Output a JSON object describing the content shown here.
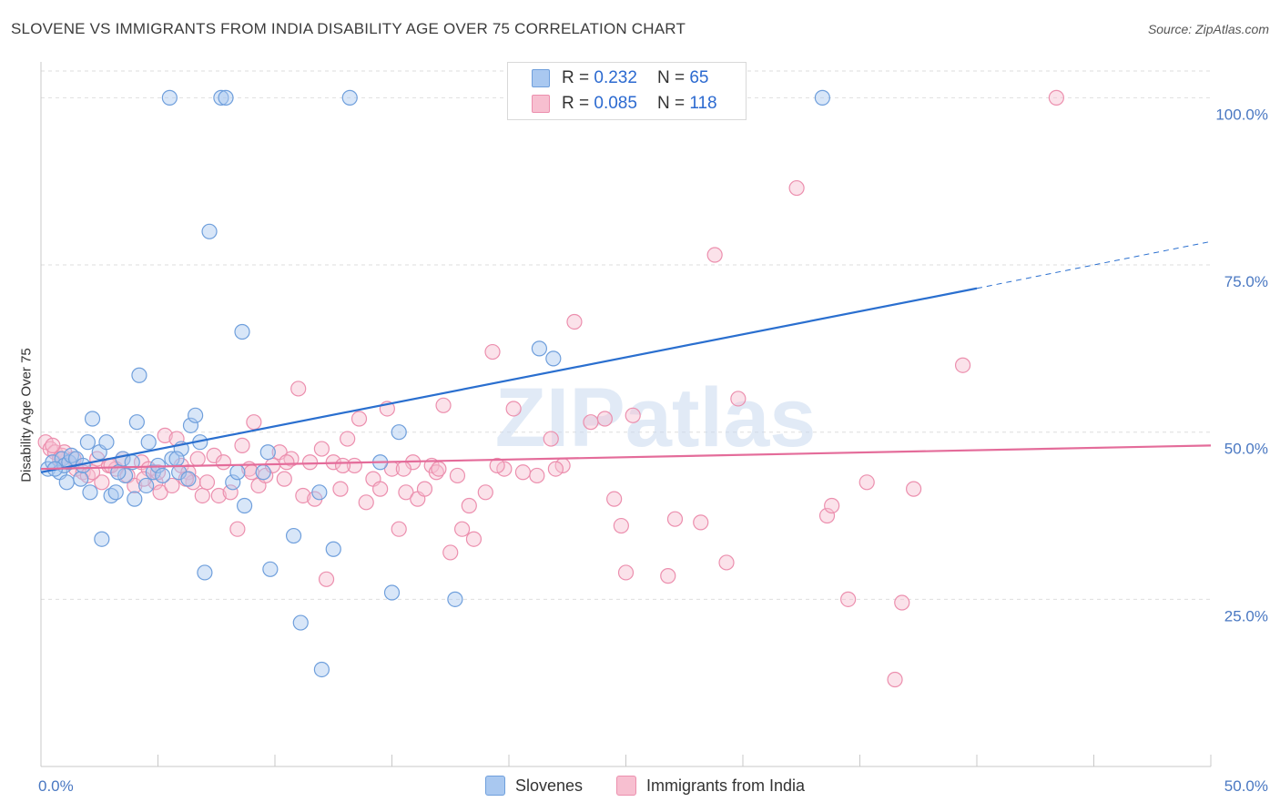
{
  "title": "SLOVENE VS IMMIGRANTS FROM INDIA DISABILITY AGE OVER 75 CORRELATION CHART",
  "source": "Source: ZipAtlas.com",
  "watermark": "ZIPatlas",
  "legend": {
    "rows": [
      {
        "r_label": "R =",
        "r_value": "0.232",
        "n_label": "N =",
        "n_value": "65"
      },
      {
        "r_label": "R =",
        "r_value": "0.085",
        "n_label": "N =",
        "n_value": "118"
      }
    ]
  },
  "bottom_legend": [
    "Slovenes",
    "Immigrants from India"
  ],
  "colors": {
    "slovenes_fill": "#a9c8f0",
    "slovenes_stroke": "#6f9fdc",
    "slovenes_line": "#2a6fcf",
    "india_fill": "#f7bfd0",
    "india_stroke": "#ec8fae",
    "india_line": "#e46c9a",
    "tick_label": "#4a78c2",
    "grid": "#dedede"
  },
  "chart_data": {
    "type": "scatter",
    "title": "SLOVENE VS IMMIGRANTS FROM INDIA DISABILITY AGE OVER 75 CORRELATION CHART",
    "xlabel": "",
    "ylabel": "Disability Age Over 75",
    "xlim": [
      0,
      50
    ],
    "ylim": [
      0,
      104
    ],
    "x_tick_labels": [
      "0.0%",
      "50.0%"
    ],
    "y_ticks": [
      25,
      50,
      75,
      100
    ],
    "y_tick_labels": [
      "25.0%",
      "50.0%",
      "75.0%",
      "100.0%"
    ],
    "grid": "horizontal dashed",
    "series": [
      {
        "name": "Slovenes",
        "r": 0.232,
        "n": 65,
        "trend": {
          "x0": 0,
          "y0": 44.0,
          "x1": 40,
          "y1": 71.5,
          "dashed_to_x": 50,
          "dashed_to_y": 78.5
        },
        "points": [
          [
            0.3,
            44.5
          ],
          [
            0.5,
            45.5
          ],
          [
            0.8,
            44.0
          ],
          [
            0.9,
            46.0
          ],
          [
            1.0,
            45.0
          ],
          [
            1.2,
            45.5
          ],
          [
            1.3,
            46.5
          ],
          [
            1.5,
            46.0
          ],
          [
            1.1,
            42.5
          ],
          [
            1.7,
            43.0
          ],
          [
            2.0,
            48.5
          ],
          [
            2.1,
            41.0
          ],
          [
            2.2,
            52.0
          ],
          [
            2.5,
            47.0
          ],
          [
            2.8,
            48.5
          ],
          [
            3.0,
            40.5
          ],
          [
            3.2,
            41.0
          ],
          [
            3.5,
            46.0
          ],
          [
            3.6,
            43.5
          ],
          [
            3.9,
            45.5
          ],
          [
            4.0,
            40.0
          ],
          [
            4.1,
            51.5
          ],
          [
            4.2,
            58.5
          ],
          [
            4.5,
            42.0
          ],
          [
            4.6,
            48.5
          ],
          [
            4.8,
            44.0
          ],
          [
            5.0,
            45.0
          ],
          [
            5.2,
            43.5
          ],
          [
            5.5,
            100.0
          ],
          [
            5.6,
            46.0
          ],
          [
            5.9,
            44.0
          ],
          [
            6.0,
            47.5
          ],
          [
            6.3,
            43.0
          ],
          [
            6.4,
            51.0
          ],
          [
            6.6,
            52.5
          ],
          [
            6.8,
            48.5
          ],
          [
            7.0,
            29.0
          ],
          [
            7.2,
            80.0
          ],
          [
            7.7,
            100.0
          ],
          [
            7.9,
            100.0
          ],
          [
            8.2,
            42.5
          ],
          [
            8.4,
            44.0
          ],
          [
            8.6,
            65.0
          ],
          [
            8.7,
            39.0
          ],
          [
            9.5,
            44.0
          ],
          [
            9.7,
            47.0
          ],
          [
            9.8,
            29.5
          ],
          [
            10.8,
            34.5
          ],
          [
            11.1,
            21.5
          ],
          [
            11.9,
            41.0
          ],
          [
            12.0,
            14.5
          ],
          [
            12.5,
            32.5
          ],
          [
            13.2,
            100.0
          ],
          [
            14.5,
            45.5
          ],
          [
            15.0,
            26.0
          ],
          [
            15.3,
            50.0
          ],
          [
            17.7,
            25.0
          ],
          [
            21.3,
            62.5
          ],
          [
            21.9,
            61.0
          ],
          [
            33.4,
            100.0
          ],
          [
            2.6,
            34.0
          ],
          [
            1.8,
            45.0
          ],
          [
            3.3,
            44.0
          ],
          [
            5.8,
            46.0
          ],
          [
            0.6,
            44.5
          ]
        ]
      },
      {
        "name": "Immigrants from India",
        "r": 0.085,
        "n": 118,
        "trend": {
          "x0": 0,
          "y0": 44.5,
          "x1": 50,
          "y1": 48.0
        },
        "points": [
          [
            0.2,
            48.5
          ],
          [
            0.4,
            47.5
          ],
          [
            0.6,
            47.0
          ],
          [
            0.9,
            46.5
          ],
          [
            1.2,
            45.5
          ],
          [
            1.5,
            44.5
          ],
          [
            1.8,
            44.0
          ],
          [
            2.0,
            43.5
          ],
          [
            2.4,
            46.0
          ],
          [
            2.6,
            42.5
          ],
          [
            2.9,
            45.0
          ],
          [
            3.2,
            44.5
          ],
          [
            3.5,
            46.0
          ],
          [
            3.7,
            43.5
          ],
          [
            4.0,
            42.0
          ],
          [
            4.3,
            45.5
          ],
          [
            4.6,
            44.5
          ],
          [
            4.9,
            42.5
          ],
          [
            5.1,
            41.0
          ],
          [
            5.3,
            49.5
          ],
          [
            5.6,
            42.0
          ],
          [
            5.8,
            49.0
          ],
          [
            6.0,
            45.0
          ],
          [
            6.3,
            44.0
          ],
          [
            6.5,
            42.5
          ],
          [
            6.7,
            46.0
          ],
          [
            6.9,
            40.5
          ],
          [
            7.1,
            42.5
          ],
          [
            7.4,
            46.5
          ],
          [
            7.6,
            40.5
          ],
          [
            7.8,
            45.5
          ],
          [
            8.1,
            41.0
          ],
          [
            8.4,
            35.5
          ],
          [
            8.6,
            48.0
          ],
          [
            8.9,
            44.5
          ],
          [
            9.1,
            51.5
          ],
          [
            9.3,
            42.0
          ],
          [
            9.6,
            43.5
          ],
          [
            9.9,
            45.0
          ],
          [
            10.2,
            47.0
          ],
          [
            10.4,
            43.0
          ],
          [
            10.7,
            46.0
          ],
          [
            11.0,
            56.5
          ],
          [
            11.2,
            40.5
          ],
          [
            11.5,
            45.5
          ],
          [
            11.7,
            40.0
          ],
          [
            12.0,
            47.5
          ],
          [
            12.2,
            28.0
          ],
          [
            12.5,
            45.5
          ],
          [
            12.8,
            41.5
          ],
          [
            13.1,
            49.0
          ],
          [
            13.4,
            45.0
          ],
          [
            13.6,
            52.0
          ],
          [
            13.9,
            39.5
          ],
          [
            14.2,
            43.0
          ],
          [
            14.5,
            41.5
          ],
          [
            14.8,
            53.5
          ],
          [
            15.0,
            44.5
          ],
          [
            15.3,
            35.5
          ],
          [
            15.6,
            41.0
          ],
          [
            15.9,
            45.5
          ],
          [
            16.1,
            40.0
          ],
          [
            16.4,
            41.5
          ],
          [
            16.7,
            45.0
          ],
          [
            16.9,
            44.0
          ],
          [
            17.2,
            54.0
          ],
          [
            17.5,
            32.0
          ],
          [
            17.8,
            43.5
          ],
          [
            18.0,
            35.5
          ],
          [
            18.3,
            39.0
          ],
          [
            18.5,
            34.0
          ],
          [
            19.0,
            41.0
          ],
          [
            19.3,
            62.0
          ],
          [
            19.8,
            44.5
          ],
          [
            20.2,
            53.5
          ],
          [
            20.6,
            44.0
          ],
          [
            21.2,
            43.5
          ],
          [
            21.8,
            49.0
          ],
          [
            22.3,
            45.0
          ],
          [
            22.8,
            66.5
          ],
          [
            23.5,
            51.5
          ],
          [
            24.1,
            52.0
          ],
          [
            24.5,
            40.0
          ],
          [
            24.8,
            36.0
          ],
          [
            25.0,
            29.0
          ],
          [
            25.3,
            52.5
          ],
          [
            26.8,
            28.5
          ],
          [
            27.1,
            37.0
          ],
          [
            28.2,
            36.5
          ],
          [
            28.8,
            76.5
          ],
          [
            29.3,
            30.5
          ],
          [
            29.8,
            55.0
          ],
          [
            32.3,
            86.5
          ],
          [
            33.6,
            37.5
          ],
          [
            33.8,
            39.0
          ],
          [
            34.5,
            25.0
          ],
          [
            35.3,
            42.5
          ],
          [
            36.5,
            13.0
          ],
          [
            36.8,
            24.5
          ],
          [
            37.3,
            41.5
          ],
          [
            39.4,
            60.0
          ],
          [
            43.4,
            100.0
          ],
          [
            1.0,
            47.0
          ],
          [
            1.4,
            46.0
          ],
          [
            2.2,
            44.0
          ],
          [
            3.0,
            45.0
          ],
          [
            5.0,
            44.0
          ],
          [
            6.2,
            43.0
          ],
          [
            9.0,
            44.0
          ],
          [
            10.5,
            45.5
          ],
          [
            12.9,
            45.0
          ],
          [
            15.5,
            44.5
          ],
          [
            17.0,
            44.5
          ],
          [
            19.5,
            45.0
          ],
          [
            22.0,
            44.5
          ],
          [
            0.5,
            48.0
          ],
          [
            0.8,
            46.0
          ],
          [
            4.4,
            43.0
          ]
        ]
      }
    ]
  }
}
